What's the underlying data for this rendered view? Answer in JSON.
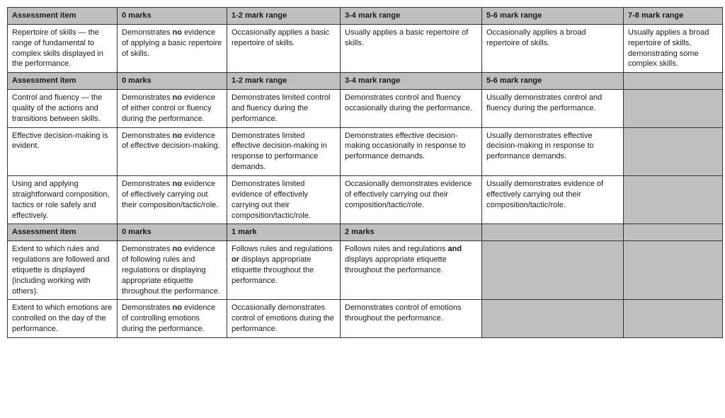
{
  "section1": {
    "headers": [
      "Assessment item",
      "0 marks",
      "1-2 mark range",
      "3-4 mark range",
      "5-6 mark range",
      "7-8 mark range"
    ],
    "rows": [
      {
        "item": "Repertoire of skills — the range of fundamental to complex skills displayed in the performance.",
        "c0a": "Demonstrates ",
        "c0b": "no",
        "c0c": " evidence of applying a basic repertoire of skills.",
        "c1": "Occasionally applies a basic repertoire of skills.",
        "c2": "Usually applies a basic repertoire of skills.",
        "c3": "Occasionally applies a broad repertoire of skills.",
        "c4": "Usually applies a broad repertoire of skills, demonstrating some complex skills."
      }
    ]
  },
  "section2": {
    "headers": [
      "Assessment item",
      "0 marks",
      "1-2 mark range",
      "3-4 mark range",
      "5-6 mark range",
      ""
    ],
    "rows": [
      {
        "item": "Control and fluency — the quality of the actions and transitions between skills.",
        "c0a": "Demonstrates ",
        "c0b": "no",
        "c0c": " evidence of either control or fluency during the performance.",
        "c1": "Demonstrates limited control and fluency during the performance.",
        "c2": "Demonstrates control and fluency occasionally during the performance.",
        "c3": "Usually demonstrates control and fluency during the performance."
      },
      {
        "item": "Effective decision-making is evident.",
        "c0a": "Demonstrates ",
        "c0b": "no",
        "c0c": " evidence of effective decision-making.",
        "c1": "Demonstrates limited effective decision-making in response to performance demands.",
        "c2": "Demonstrates effective decision-making occasionally in response to performance demands.",
        "c3": "Usually demonstrates effective decision-making in response to performance demands."
      },
      {
        "item": "Using and applying straightforward composition, tactics or role safely and effectively.",
        "c0a": "Demonstrates ",
        "c0b": "no",
        "c0c": " evidence of effectively carrying out their composition/tactic/role.",
        "c1": "Demonstrates limited evidence of effectively carrying out their composition/tactic/role.",
        "c2": "Occasionally demonstrates evidence of effectively carrying out their composition/tactic/role.",
        "c3": "Usually demonstrates evidence of effectively carrying out their composition/tactic/role."
      }
    ]
  },
  "section3": {
    "headers": [
      "Assessment item",
      "0 marks",
      "1 mark",
      "2 marks",
      "",
      ""
    ],
    "rows": [
      {
        "item": "Extent to which rules and regulations are followed and etiquette is displayed (including working with others).",
        "c0a": "Demonstrates ",
        "c0b": "no",
        "c0c": " evidence of following rules and regulations or displaying appropriate etiquette throughout the performance.",
        "c1a": "Follows rules and regulations ",
        "c1b": "or",
        "c1c": " displays appropriate etiquette throughout the performance.",
        "c2a": "Follows rules and regulations ",
        "c2b": "and",
        "c2c": " displays appropriate etiquette throughout the performance."
      },
      {
        "item": "Extent to which emotions are controlled on the day of the performance.",
        "c0a": "Demonstrates ",
        "c0b": "no",
        "c0c": " evidence of controlling emotions during the performance.",
        "c1": "Occasionally demonstrates control of emotions during the performance.",
        "c2": "Demonstrates control of emotions throughout the performance."
      }
    ]
  }
}
